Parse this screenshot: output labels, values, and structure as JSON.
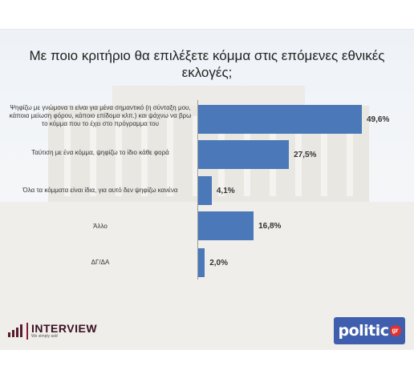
{
  "chart_data": {
    "type": "bar",
    "orientation": "horizontal",
    "title": "Με ποιο κριτήριο θα επιλέξετε κόμμα στις επόμενες εθνικές εκλογές;",
    "categories": [
      "Ψηφίζω με γνώμονα τι είναι για μένα σημαντικό (η σύνταξη μου, κάποια μείωση φόρου, κάποιο επίδομα κλπ.) και ψάχνω να βρω το κόμμα που το έχει στο πρόγραμμα του",
      "Ταύτιση με ένα κόμμα, ψηφίζω το ίδιο κάθε φορά",
      "Όλα τα κόμματα είναι ίδια, για αυτό δεν ψηφίζω κανένα",
      "Άλλο",
      "ΔΓ/ΔΑ"
    ],
    "values": [
      49.6,
      27.5,
      4.1,
      16.8,
      2.0
    ],
    "value_labels": [
      "49,6%",
      "27,5%",
      "4,1%",
      "16,8%",
      "2,0%"
    ],
    "xlim": [
      0,
      55
    ],
    "bar_color": "#4b78b8",
    "grid": false,
    "legend": "none"
  },
  "branding": {
    "left_logo": {
      "name": "INTERVIEW",
      "tagline": "We simply ask!"
    },
    "right_logo": {
      "name": "politic",
      "suffix": "gr"
    }
  },
  "colors": {
    "accent": "#4b78b8",
    "interview": "#5a1a2e",
    "politic": "#3f5fae",
    "politic_badge": "#e0312e"
  }
}
